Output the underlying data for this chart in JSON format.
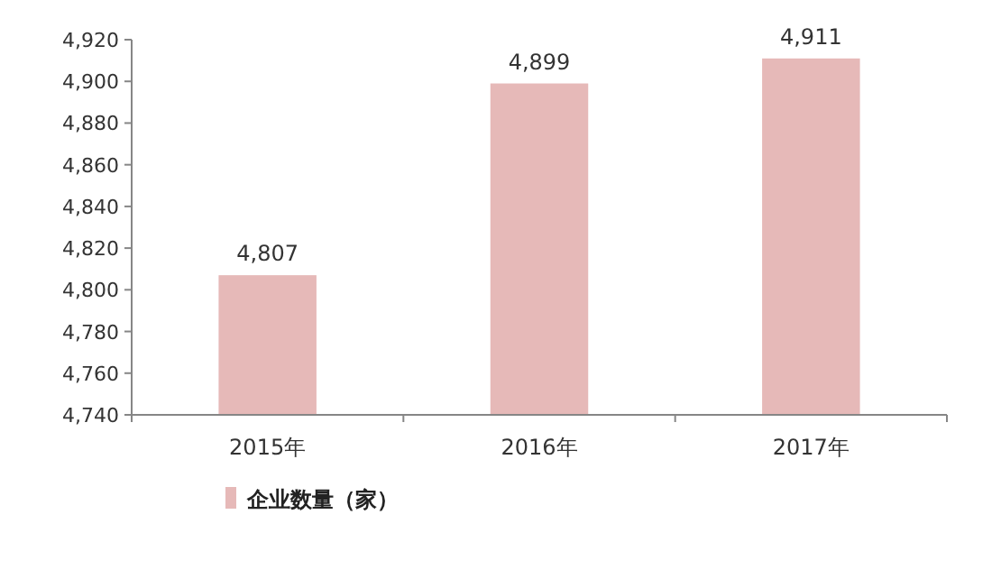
{
  "chart_data": {
    "type": "bar",
    "categories": [
      "2015年",
      "2016年",
      "2017年"
    ],
    "series": [
      {
        "name": "企业数量（家）",
        "color": "#e6b9b8",
        "values": [
          4807,
          4899,
          4911
        ],
        "value_labels": [
          "4,807",
          "4,899",
          "4,911"
        ]
      }
    ],
    "ylim": [
      4740,
      4920
    ],
    "yticks": [
      {
        "value": 4740,
        "label": "4,740"
      },
      {
        "value": 4760,
        "label": "4,760"
      },
      {
        "value": 4780,
        "label": "4,780"
      },
      {
        "value": 4800,
        "label": "4,800"
      },
      {
        "value": 4820,
        "label": "4,820"
      },
      {
        "value": 4840,
        "label": "4,840"
      },
      {
        "value": 4860,
        "label": "4,860"
      },
      {
        "value": 4880,
        "label": "4,880"
      },
      {
        "value": 4900,
        "label": "4,900"
      },
      {
        "value": 4920,
        "label": "4,920"
      }
    ],
    "grid": false,
    "legend": "bottom"
  }
}
